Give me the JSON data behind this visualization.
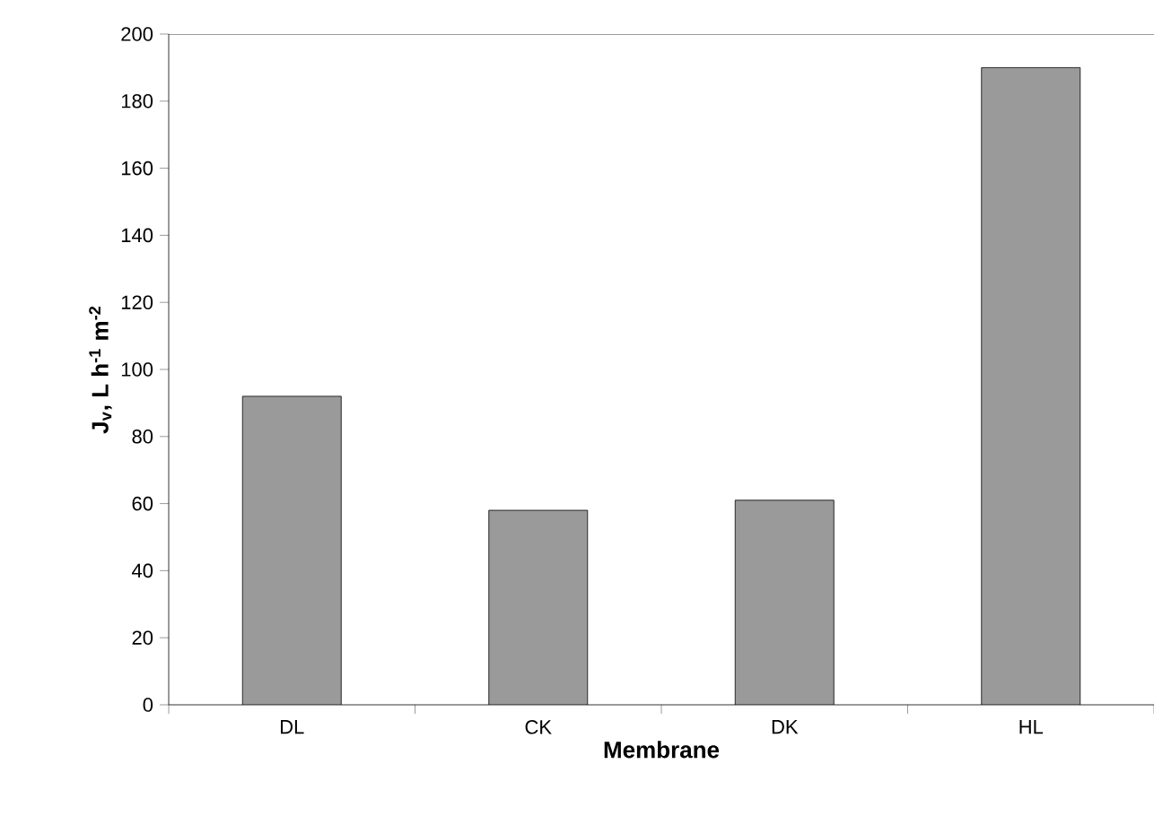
{
  "chart_data": {
    "type": "bar",
    "xlabel": "Membrane",
    "ylabel": "J$_{v}$, L h$^{-1}$ m$^{-2}$",
    "categories": [
      "DL",
      "CK",
      "DK",
      "HL"
    ],
    "values": [
      92,
      58,
      61,
      190
    ],
    "color": "#9a9a9a",
    "ylim": [
      0,
      200
    ],
    "yticks": [
      0,
      20,
      40,
      60,
      80,
      100,
      120,
      140,
      160,
      180,
      200
    ],
    "grid": false
  }
}
